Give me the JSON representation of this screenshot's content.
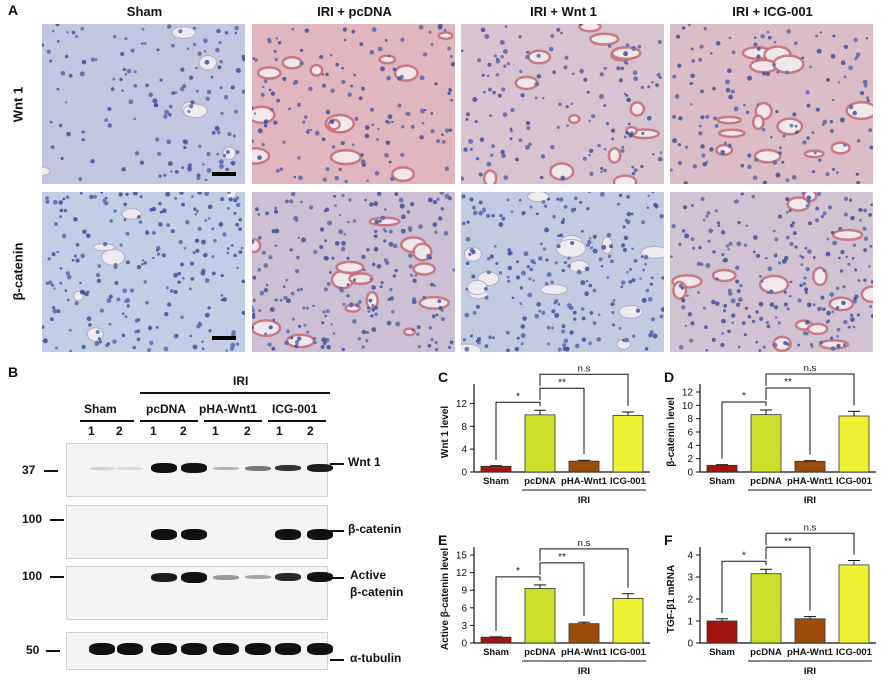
{
  "panel_a": {
    "label": "A",
    "columns": [
      "Sham",
      "IRI + pcDNA",
      "IRI + Wnt 1",
      "IRI + ICG-001"
    ],
    "rows": [
      "Wnt 1",
      "β-catenin"
    ]
  },
  "panel_b": {
    "label": "B",
    "iri_label": "IRI",
    "groups": [
      "Sham",
      "pcDNA",
      "pHA-Wnt1",
      "ICG-001"
    ],
    "lanes": [
      "1",
      "2",
      "1",
      "2",
      "1",
      "2",
      "1",
      "2"
    ],
    "blots": [
      {
        "name": "Wnt 1",
        "marker": "37"
      },
      {
        "name": "β-catenin",
        "marker": "100"
      },
      {
        "name": "Active β-catenin",
        "name_line1": "Active",
        "name_line2": "β-catenin",
        "marker": "100"
      },
      {
        "name": "α-tubulin",
        "marker": "50"
      }
    ]
  },
  "chart_data": [
    {
      "panel": "C",
      "type": "bar",
      "categories": [
        "Sham",
        "pcDNA",
        "pHA-Wnt1",
        "ICG-001"
      ],
      "values": [
        1.0,
        10.0,
        1.9,
        9.9
      ],
      "errors": [
        0.1,
        0.8,
        0.15,
        0.6
      ],
      "colors": [
        "#a3140e",
        "#ccdf2a",
        "#9b4d0a",
        "#eef232"
      ],
      "ylabel": "Wnt 1 level",
      "group_label": "IRI",
      "ylim": [
        0,
        14
      ],
      "yticks": [
        0,
        4,
        8,
        12
      ],
      "significance": [
        "*",
        "**",
        "n.s"
      ]
    },
    {
      "panel": "D",
      "type": "bar",
      "categories": [
        "Sham",
        "pcDNA",
        "pHA-Wnt1",
        "ICG-001"
      ],
      "values": [
        1.0,
        8.6,
        1.6,
        8.4
      ],
      "errors": [
        0.1,
        0.7,
        0.1,
        0.7
      ],
      "colors": [
        "#a3140e",
        "#ccdf2a",
        "#9b4d0a",
        "#eef232"
      ],
      "ylabel": "β-catenin level",
      "group_label": "IRI",
      "ylim": [
        0,
        12
      ],
      "yticks": [
        0,
        2,
        4,
        6,
        8,
        10,
        12
      ],
      "significance": [
        "*",
        "**",
        "n.s"
      ]
    },
    {
      "panel": "E",
      "type": "bar",
      "categories": [
        "Sham",
        "pcDNA",
        "pHA-Wnt1",
        "ICG-001"
      ],
      "values": [
        1.0,
        9.3,
        3.3,
        7.6
      ],
      "errors": [
        0.05,
        0.6,
        0.25,
        0.8
      ],
      "colors": [
        "#a3140e",
        "#ccdf2a",
        "#9b4d0a",
        "#eef232"
      ],
      "ylabel": "Active β-catenin level",
      "group_label": "IRI",
      "ylim": [
        0,
        15
      ],
      "yticks": [
        0,
        3,
        6,
        9,
        12,
        15
      ],
      "significance": [
        "*",
        "**",
        "n.s"
      ]
    },
    {
      "panel": "F",
      "type": "bar",
      "categories": [
        "Sham",
        "pcDNA",
        "pHA-Wnt1",
        "ICG-001"
      ],
      "values": [
        1.0,
        3.15,
        1.1,
        3.55
      ],
      "errors": [
        0.1,
        0.2,
        0.1,
        0.2
      ],
      "colors": [
        "#a3140e",
        "#ccdf2a",
        "#9b4d0a",
        "#eef232"
      ],
      "ylabel": "TGF-β1 mRNA",
      "group_label": "IRI",
      "ylim": [
        0,
        4
      ],
      "yticks": [
        0,
        1,
        2,
        3,
        4
      ],
      "significance": [
        "*",
        "**",
        "n.s"
      ]
    }
  ]
}
